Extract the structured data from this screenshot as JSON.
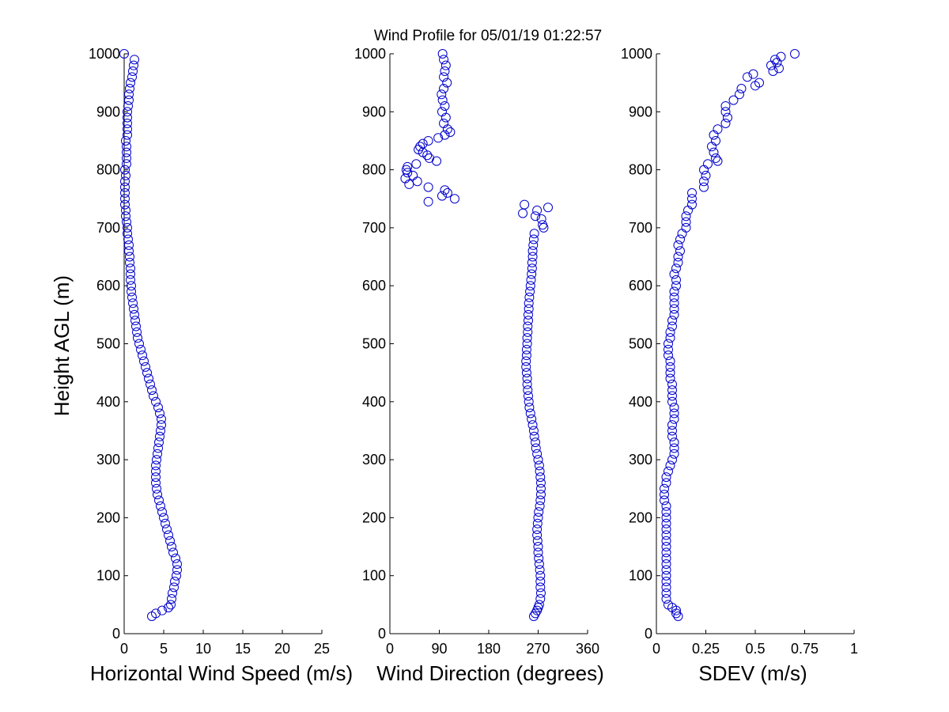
{
  "figure": {
    "title": "Wind Profile for  05/01/19 01:22:57",
    "marker_color": "#0000cc"
  },
  "chart_data": [
    {
      "type": "scatter",
      "title": "",
      "xlabel": "Horizontal Wind Speed (m/s)",
      "ylabel": "Height AGL (m)",
      "xlim": [
        0,
        25
      ],
      "ylim": [
        0,
        1000
      ],
      "xticks": [
        "0",
        "5",
        "10",
        "15",
        "20",
        "25"
      ],
      "xtick_values": [
        0,
        5,
        10,
        15,
        20,
        25
      ],
      "yticks": [
        "0",
        "100",
        "200",
        "300",
        "400",
        "500",
        "600",
        "700",
        "800",
        "900",
        "1000"
      ],
      "ytick_values": [
        0,
        100,
        200,
        300,
        400,
        500,
        600,
        700,
        800,
        900,
        1000
      ],
      "profile": [
        [
          30,
          3.5
        ],
        [
          35,
          4.0
        ],
        [
          40,
          4.8
        ],
        [
          45,
          5.6
        ],
        [
          50,
          5.9
        ],
        [
          60,
          6.0
        ],
        [
          70,
          6.1
        ],
        [
          80,
          6.3
        ],
        [
          90,
          6.4
        ],
        [
          100,
          6.6
        ],
        [
          110,
          6.7
        ],
        [
          120,
          6.7
        ],
        [
          130,
          6.5
        ],
        [
          140,
          6.2
        ],
        [
          150,
          6.0
        ],
        [
          160,
          5.8
        ],
        [
          170,
          5.6
        ],
        [
          180,
          5.4
        ],
        [
          190,
          5.2
        ],
        [
          200,
          5.0
        ],
        [
          210,
          4.8
        ],
        [
          220,
          4.6
        ],
        [
          230,
          4.4
        ],
        [
          240,
          4.2
        ],
        [
          250,
          4.1
        ],
        [
          260,
          4.0
        ],
        [
          270,
          4.0
        ],
        [
          280,
          4.0
        ],
        [
          290,
          4.0
        ],
        [
          300,
          4.1
        ],
        [
          310,
          4.2
        ],
        [
          320,
          4.3
        ],
        [
          330,
          4.4
        ],
        [
          340,
          4.5
        ],
        [
          350,
          4.6
        ],
        [
          360,
          4.7
        ],
        [
          370,
          4.7
        ],
        [
          380,
          4.5
        ],
        [
          390,
          4.3
        ],
        [
          400,
          4.0
        ],
        [
          410,
          3.7
        ],
        [
          420,
          3.5
        ],
        [
          430,
          3.3
        ],
        [
          440,
          3.1
        ],
        [
          450,
          2.9
        ],
        [
          460,
          2.7
        ],
        [
          470,
          2.5
        ],
        [
          480,
          2.3
        ],
        [
          490,
          2.1
        ],
        [
          500,
          1.9
        ],
        [
          510,
          1.7
        ],
        [
          520,
          1.6
        ],
        [
          530,
          1.5
        ],
        [
          540,
          1.4
        ],
        [
          550,
          1.3
        ],
        [
          560,
          1.2
        ],
        [
          570,
          1.1
        ],
        [
          580,
          1.0
        ],
        [
          590,
          0.9
        ],
        [
          600,
          0.9
        ],
        [
          610,
          0.8
        ],
        [
          620,
          0.8
        ],
        [
          630,
          0.8
        ],
        [
          640,
          0.7
        ],
        [
          650,
          0.7
        ],
        [
          660,
          0.6
        ],
        [
          670,
          0.6
        ],
        [
          680,
          0.5
        ],
        [
          690,
          0.4
        ],
        [
          700,
          0.4
        ],
        [
          710,
          0.3
        ],
        [
          720,
          0.2
        ],
        [
          730,
          0.2
        ],
        [
          740,
          0.1
        ],
        [
          750,
          0.1
        ],
        [
          760,
          0.1
        ],
        [
          770,
          0.1
        ],
        [
          780,
          0.1
        ],
        [
          790,
          0.2
        ],
        [
          800,
          0.1
        ],
        [
          810,
          0.3
        ],
        [
          820,
          0.3
        ],
        [
          830,
          0.3
        ],
        [
          840,
          0.3
        ],
        [
          850,
          0.2
        ],
        [
          860,
          0.4
        ],
        [
          870,
          0.4
        ],
        [
          880,
          0.4
        ],
        [
          890,
          0.4
        ],
        [
          900,
          0.4
        ],
        [
          910,
          0.5
        ],
        [
          920,
          0.6
        ],
        [
          930,
          0.6
        ],
        [
          940,
          0.7
        ],
        [
          950,
          0.8
        ],
        [
          960,
          1.0
        ],
        [
          970,
          1.1
        ],
        [
          980,
          1.2
        ],
        [
          990,
          1.3
        ],
        [
          1000,
          0.0
        ]
      ]
    },
    {
      "type": "scatter",
      "title": "",
      "xlabel": "Wind Direction (degrees)",
      "ylabel": "",
      "xlim": [
        0,
        360
      ],
      "ylim": [
        0,
        1000
      ],
      "xticks": [
        "0",
        "90",
        "180",
        "270",
        "360"
      ],
      "xtick_values": [
        0,
        90,
        180,
        270,
        360
      ],
      "yticks": [
        "0",
        "100",
        "200",
        "300",
        "400",
        "500",
        "600",
        "700",
        "800",
        "900",
        "1000"
      ],
      "ytick_values": [
        0,
        100,
        200,
        300,
        400,
        500,
        600,
        700,
        800,
        900,
        1000
      ],
      "profile": [
        [
          30,
          262
        ],
        [
          35,
          265
        ],
        [
          40,
          268
        ],
        [
          45,
          270
        ],
        [
          50,
          272
        ],
        [
          60,
          274
        ],
        [
          70,
          275
        ],
        [
          80,
          274
        ],
        [
          90,
          274
        ],
        [
          100,
          274
        ],
        [
          110,
          273
        ],
        [
          120,
          272
        ],
        [
          130,
          271
        ],
        [
          140,
          270
        ],
        [
          150,
          270
        ],
        [
          160,
          269
        ],
        [
          170,
          268
        ],
        [
          180,
          268
        ],
        [
          190,
          269
        ],
        [
          200,
          270
        ],
        [
          210,
          271
        ],
        [
          220,
          273
        ],
        [
          230,
          274
        ],
        [
          240,
          275
        ],
        [
          250,
          275
        ],
        [
          260,
          275
        ],
        [
          270,
          274
        ],
        [
          280,
          273
        ],
        [
          290,
          272
        ],
        [
          300,
          270
        ],
        [
          310,
          268
        ],
        [
          320,
          266
        ],
        [
          330,
          265
        ],
        [
          340,
          263
        ],
        [
          350,
          262
        ],
        [
          360,
          260
        ],
        [
          370,
          258
        ],
        [
          380,
          256
        ],
        [
          390,
          254
        ],
        [
          400,
          253
        ],
        [
          410,
          252
        ],
        [
          420,
          251
        ],
        [
          430,
          250
        ],
        [
          440,
          250
        ],
        [
          450,
          249
        ],
        [
          460,
          248
        ],
        [
          470,
          248
        ],
        [
          480,
          249
        ],
        [
          490,
          249
        ],
        [
          500,
          250
        ],
        [
          510,
          250
        ],
        [
          520,
          251
        ],
        [
          530,
          251
        ],
        [
          540,
          252
        ],
        [
          550,
          252
        ],
        [
          560,
          253
        ],
        [
          570,
          253
        ],
        [
          580,
          254
        ],
        [
          590,
          255
        ],
        [
          600,
          256
        ],
        [
          610,
          257
        ],
        [
          620,
          258
        ],
        [
          630,
          259
        ],
        [
          640,
          259
        ],
        [
          650,
          260
        ],
        [
          660,
          260
        ],
        [
          670,
          261
        ],
        [
          680,
          262
        ],
        [
          690,
          263
        ],
        [
          700,
          280
        ],
        [
          705,
          278
        ],
        [
          715,
          276
        ],
        [
          720,
          265
        ],
        [
          725,
          242
        ],
        [
          730,
          268
        ],
        [
          735,
          288
        ],
        [
          740,
          245
        ],
        [
          745,
          70
        ],
        [
          750,
          118
        ],
        [
          755,
          95
        ],
        [
          760,
          105
        ],
        [
          765,
          100
        ],
        [
          770,
          70
        ],
        [
          775,
          35
        ],
        [
          780,
          50
        ],
        [
          785,
          28
        ],
        [
          790,
          42
        ],
        [
          795,
          32
        ],
        [
          800,
          30
        ],
        [
          805,
          32
        ],
        [
          810,
          48
        ],
        [
          815,
          85
        ],
        [
          820,
          72
        ],
        [
          825,
          68
        ],
        [
          830,
          60
        ],
        [
          835,
          52
        ],
        [
          840,
          55
        ],
        [
          845,
          60
        ],
        [
          850,
          70
        ],
        [
          855,
          88
        ],
        [
          860,
          100
        ],
        [
          865,
          110
        ],
        [
          870,
          105
        ],
        [
          880,
          98
        ],
        [
          890,
          102
        ],
        [
          900,
          95
        ],
        [
          910,
          100
        ],
        [
          920,
          96
        ],
        [
          930,
          94
        ],
        [
          940,
          98
        ],
        [
          950,
          104
        ],
        [
          960,
          98
        ],
        [
          970,
          100
        ],
        [
          980,
          102
        ],
        [
          990,
          98
        ],
        [
          1000,
          96
        ]
      ]
    },
    {
      "type": "scatter",
      "title": "",
      "xlabel": "SDEV  (m/s)",
      "ylabel": "",
      "xlim": [
        0,
        1
      ],
      "ylim": [
        0,
        1000
      ],
      "xticks": [
        "0",
        "0.25",
        "0.5",
        "0.75",
        "1"
      ],
      "xtick_values": [
        0,
        0.25,
        0.5,
        0.75,
        1
      ],
      "yticks": [
        "0",
        "100",
        "200",
        "300",
        "400",
        "500",
        "600",
        "700",
        "800",
        "900",
        "1000"
      ],
      "ytick_values": [
        0,
        100,
        200,
        300,
        400,
        500,
        600,
        700,
        800,
        900,
        1000
      ],
      "profile": [
        [
          30,
          0.11
        ],
        [
          35,
          0.1
        ],
        [
          40,
          0.1
        ],
        [
          45,
          0.08
        ],
        [
          50,
          0.06
        ],
        [
          60,
          0.05
        ],
        [
          70,
          0.05
        ],
        [
          80,
          0.05
        ],
        [
          90,
          0.05
        ],
        [
          100,
          0.05
        ],
        [
          110,
          0.05
        ],
        [
          120,
          0.05
        ],
        [
          130,
          0.05
        ],
        [
          140,
          0.05
        ],
        [
          150,
          0.05
        ],
        [
          160,
          0.05
        ],
        [
          170,
          0.05
        ],
        [
          180,
          0.05
        ],
        [
          190,
          0.05
        ],
        [
          200,
          0.05
        ],
        [
          210,
          0.05
        ],
        [
          220,
          0.05
        ],
        [
          230,
          0.04
        ],
        [
          240,
          0.04
        ],
        [
          250,
          0.04
        ],
        [
          260,
          0.05
        ],
        [
          270,
          0.05
        ],
        [
          280,
          0.06
        ],
        [
          290,
          0.07
        ],
        [
          300,
          0.08
        ],
        [
          310,
          0.09
        ],
        [
          320,
          0.09
        ],
        [
          330,
          0.09
        ],
        [
          340,
          0.08
        ],
        [
          350,
          0.08
        ],
        [
          360,
          0.08
        ],
        [
          370,
          0.09
        ],
        [
          380,
          0.09
        ],
        [
          390,
          0.09
        ],
        [
          400,
          0.08
        ],
        [
          410,
          0.08
        ],
        [
          420,
          0.08
        ],
        [
          430,
          0.08
        ],
        [
          440,
          0.07
        ],
        [
          450,
          0.07
        ],
        [
          460,
          0.07
        ],
        [
          470,
          0.07
        ],
        [
          480,
          0.06
        ],
        [
          490,
          0.06
        ],
        [
          500,
          0.06
        ],
        [
          510,
          0.07
        ],
        [
          520,
          0.07
        ],
        [
          530,
          0.08
        ],
        [
          540,
          0.08
        ],
        [
          550,
          0.09
        ],
        [
          560,
          0.09
        ],
        [
          570,
          0.09
        ],
        [
          580,
          0.09
        ],
        [
          590,
          0.09
        ],
        [
          600,
          0.1
        ],
        [
          610,
          0.1
        ],
        [
          620,
          0.09
        ],
        [
          630,
          0.1
        ],
        [
          640,
          0.11
        ],
        [
          650,
          0.11
        ],
        [
          660,
          0.12
        ],
        [
          670,
          0.11
        ],
        [
          680,
          0.12
        ],
        [
          690,
          0.13
        ],
        [
          700,
          0.15
        ],
        [
          710,
          0.15
        ],
        [
          720,
          0.15
        ],
        [
          730,
          0.16
        ],
        [
          740,
          0.18
        ],
        [
          750,
          0.18
        ],
        [
          760,
          0.18
        ],
        [
          770,
          0.24
        ],
        [
          780,
          0.24
        ],
        [
          790,
          0.25
        ],
        [
          800,
          0.24
        ],
        [
          810,
          0.26
        ],
        [
          815,
          0.31
        ],
        [
          820,
          0.3
        ],
        [
          830,
          0.29
        ],
        [
          840,
          0.28
        ],
        [
          850,
          0.3
        ],
        [
          860,
          0.29
        ],
        [
          870,
          0.31
        ],
        [
          880,
          0.35
        ],
        [
          890,
          0.36
        ],
        [
          900,
          0.35
        ],
        [
          910,
          0.35
        ],
        [
          920,
          0.39
        ],
        [
          930,
          0.42
        ],
        [
          940,
          0.43
        ],
        [
          945,
          0.5
        ],
        [
          950,
          0.52
        ],
        [
          960,
          0.46
        ],
        [
          965,
          0.49
        ],
        [
          970,
          0.59
        ],
        [
          975,
          0.62
        ],
        [
          980,
          0.58
        ],
        [
          985,
          0.61
        ],
        [
          990,
          0.6
        ],
        [
          995,
          0.63
        ],
        [
          1000,
          0.7
        ]
      ]
    }
  ]
}
